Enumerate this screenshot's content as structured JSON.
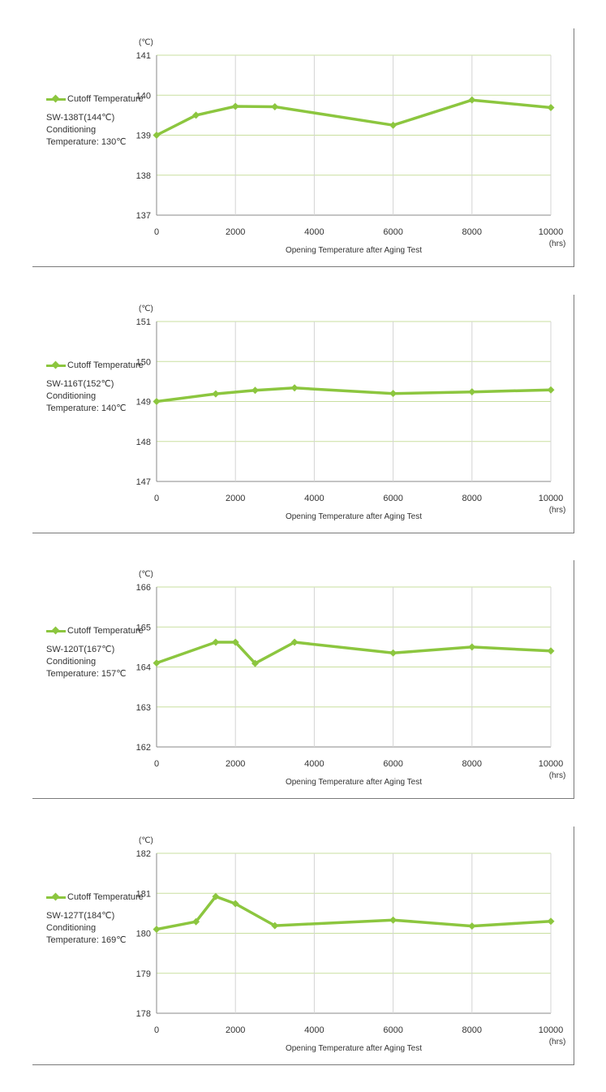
{
  "legend": {
    "series_name": "Cutoff Temperature"
  },
  "chart_data": [
    {
      "type": "line",
      "device_label": "SW-138T(144℃)",
      "condition_label": "Conditioning\nTemperature: 130℃",
      "y_unit": "(℃)",
      "x_unit": "(hrs)",
      "xlabel": "Opening Temperature after Aging Test",
      "xlim": [
        0,
        10000
      ],
      "ylim": [
        137,
        141
      ],
      "xticks": [
        "0",
        "2000",
        "4000",
        "6000",
        "8000",
        "10000"
      ],
      "yticks": [
        "137",
        "138",
        "139",
        "140",
        "141"
      ],
      "grid": true,
      "series": [
        {
          "name": "Cutoff Temperature",
          "color": "#8cc63f",
          "x": [
            0,
            1000,
            2000,
            3000,
            6000,
            8000,
            10000
          ],
          "y": [
            139.0,
            139.5,
            139.72,
            139.71,
            139.25,
            139.88,
            139.69
          ]
        }
      ]
    },
    {
      "type": "line",
      "device_label": "SW-116T(152℃)",
      "condition_label": "Conditioning\nTemperature: 140℃",
      "y_unit": "(℃)",
      "x_unit": "(hrs)",
      "xlabel": "Opening Temperature after Aging Test",
      "xlim": [
        0,
        10000
      ],
      "ylim": [
        147,
        151
      ],
      "xticks": [
        "0",
        "2000",
        "4000",
        "6000",
        "8000",
        "10000"
      ],
      "yticks": [
        "147",
        "148",
        "149",
        "150",
        "151"
      ],
      "grid": true,
      "series": [
        {
          "name": "Cutoff Temperature",
          "color": "#8cc63f",
          "x": [
            0,
            1500,
            2500,
            3500,
            6000,
            8000,
            10000
          ],
          "y": [
            149.0,
            149.19,
            149.28,
            149.34,
            149.2,
            149.24,
            149.29
          ]
        }
      ]
    },
    {
      "type": "line",
      "device_label": "SW-120T(167℃)",
      "condition_label": "Conditioning\nTemperature: 157℃",
      "y_unit": "(℃)",
      "x_unit": "(hrs)",
      "xlabel": "Opening Temperature after Aging Test",
      "xlim": [
        0,
        10000
      ],
      "ylim": [
        162,
        166
      ],
      "xticks": [
        "0",
        "2000",
        "4000",
        "6000",
        "8000",
        "10000"
      ],
      "yticks": [
        "162",
        "163",
        "164",
        "165",
        "166"
      ],
      "grid": true,
      "series": [
        {
          "name": "Cutoff Temperature",
          "color": "#8cc63f",
          "x": [
            0,
            1500,
            2000,
            2500,
            3500,
            6000,
            8000,
            10000
          ],
          "y": [
            164.1,
            164.62,
            164.62,
            164.09,
            164.62,
            164.35,
            164.5,
            164.4
          ]
        }
      ]
    },
    {
      "type": "line",
      "device_label": "SW-127T(184℃)",
      "condition_label": "Conditioning\nTemperature: 169℃",
      "y_unit": "(℃)",
      "x_unit": "(hrs)",
      "xlabel": "Opening Temperature after Aging Test",
      "xlim": [
        0,
        10000
      ],
      "ylim": [
        178,
        182
      ],
      "xticks": [
        "0",
        "2000",
        "4000",
        "6000",
        "8000",
        "10000"
      ],
      "yticks": [
        "178",
        "179",
        "180",
        "181",
        "182"
      ],
      "grid": true,
      "series": [
        {
          "name": "Cutoff Temperature",
          "color": "#8cc63f",
          "x": [
            0,
            1000,
            1500,
            2000,
            3000,
            6000,
            8000,
            10000
          ],
          "y": [
            180.1,
            180.29,
            180.92,
            180.74,
            180.19,
            180.33,
            180.18,
            180.3
          ]
        }
      ]
    }
  ]
}
